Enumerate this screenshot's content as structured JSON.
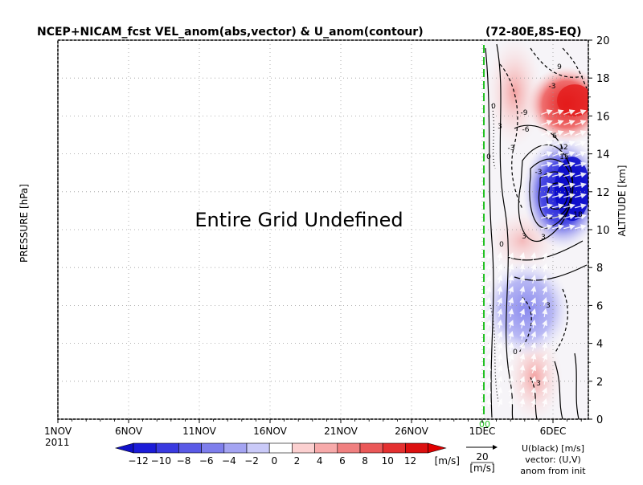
{
  "chart_data": {
    "type": "heatmap",
    "title": "NCEP+NICAM_fcst VEL_anom(abs,vector) & U_anom(contour)",
    "region": "(72-80E,8S-EQ)",
    "left_axis_label": "PRESSURE [hPa]",
    "right_axis_label": "ALTITUDE [km]",
    "undefined_message": "Entire Grid Undefined",
    "x_tick_labels": [
      "1NOV",
      "6NOV",
      "11NOV",
      "16NOV",
      "21NOV",
      "26NOV",
      "1DEC",
      "6DEC"
    ],
    "x_year": "2011",
    "init_marker_label": "00",
    "altitude_ticks": [
      0,
      2,
      4,
      6,
      8,
      10,
      12,
      14,
      16,
      18,
      20
    ],
    "altitude_range_km": [
      0,
      20
    ],
    "grid": true,
    "colorbar": {
      "unit": "[m/s]",
      "tick_labels": [
        "-12",
        "-10",
        "-8",
        "-6",
        "-4",
        "-2",
        "0",
        "2",
        "4",
        "6",
        "8",
        "10",
        "12"
      ],
      "colors": [
        "#1c1cd8",
        "#3a3ae0",
        "#5a5ae6",
        "#7e7eec",
        "#a4a4f2",
        "#cacaf8",
        "#ffffff",
        "#fbd0d0",
        "#f7aaaa",
        "#f08080",
        "#ea5858",
        "#e43030",
        "#dc1010"
      ],
      "below_color": "#1010c8",
      "above_color": "#e00000"
    },
    "vector_legend": {
      "value": "20",
      "unit": "[m/s]"
    },
    "legend_notes": [
      "U(black) [m/s]",
      "vector: (U,V)",
      "anom from init"
    ],
    "contour_labels": [
      "3",
      "3",
      "3",
      "-3",
      "-3",
      "0",
      "0",
      "0",
      "3",
      "9",
      "12",
      "15",
      "18",
      "6",
      "-6",
      "-9",
      "3",
      "-3",
      "0"
    ]
  }
}
